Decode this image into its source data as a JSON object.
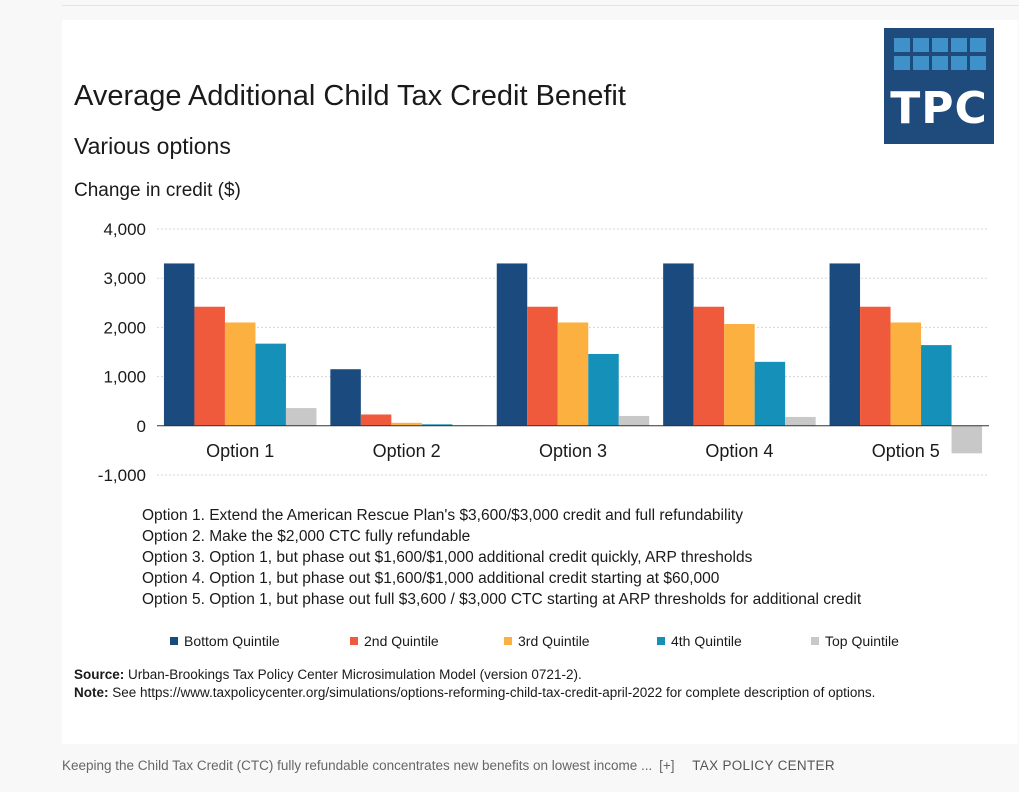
{
  "logo": {
    "text": "TPC"
  },
  "chart_data": {
    "type": "bar",
    "title": "Average Additional  Child Tax Credit Benefit",
    "subtitle": "Various options",
    "ylabel": "Change in credit ($)",
    "xlabel": "",
    "ylim": [
      -1000,
      4000
    ],
    "yticks": [
      4000,
      3000,
      2000,
      1000,
      0,
      -1000
    ],
    "ytick_labels": [
      "4,000",
      "3,000",
      "2,000",
      "1,000",
      "0",
      "-1,000"
    ],
    "grid": true,
    "legend_position": "bottom",
    "categories": [
      "Option 1",
      "Option 2",
      "Option 3",
      "Option 4",
      "Option 5"
    ],
    "series": [
      {
        "name": "Bottom Quintile",
        "color": "#1b4b7e",
        "values": [
          3300,
          1150,
          3300,
          3300,
          3300
        ]
      },
      {
        "name": "2nd Quintile",
        "color": "#f05a3c",
        "values": [
          2420,
          230,
          2420,
          2420,
          2420
        ]
      },
      {
        "name": "3rd Quintile",
        "color": "#fbb040",
        "values": [
          2100,
          60,
          2100,
          2070,
          2100
        ]
      },
      {
        "name": "4th Quintile",
        "color": "#1590b8",
        "values": [
          1670,
          30,
          1460,
          1300,
          1640
        ]
      },
      {
        "name": "Top Quintile",
        "color": "#c8c8c8",
        "values": [
          360,
          10,
          200,
          180,
          -560
        ]
      }
    ]
  },
  "notes": [
    "Option 1. Extend the American Rescue Plan's $3,600/$3,000 credit and full refundability",
    "Option 2. Make the $2,000 CTC fully refundable",
    "Option 3. Option 1, but phase out $1,600/$1,000 additional credit quickly, ARP thresholds",
    "Option 4. Option 1, but phase out $1,600/$1,000 additional credit starting at $60,000",
    "Option 5. Option 1, but phase out full $3,600 / $3,000 CTC starting at ARP thresholds for additional credit"
  ],
  "source": {
    "source_label": "Source:",
    "source_text": " Urban-Brookings Tax Policy Center Microsimulation Model (version 0721-2).",
    "note_label": "Note:",
    "note_text": " See https://www.taxpolicycenter.org/simulations/options-reforming-child-tax-credit-april-2022 for complete description of options."
  },
  "caption": {
    "text": "Keeping the Child Tax Credit (CTC) fully refundable concentrates new benefits on lowest income ...",
    "expand": "[+]",
    "credit": "TAX POLICY CENTER"
  }
}
